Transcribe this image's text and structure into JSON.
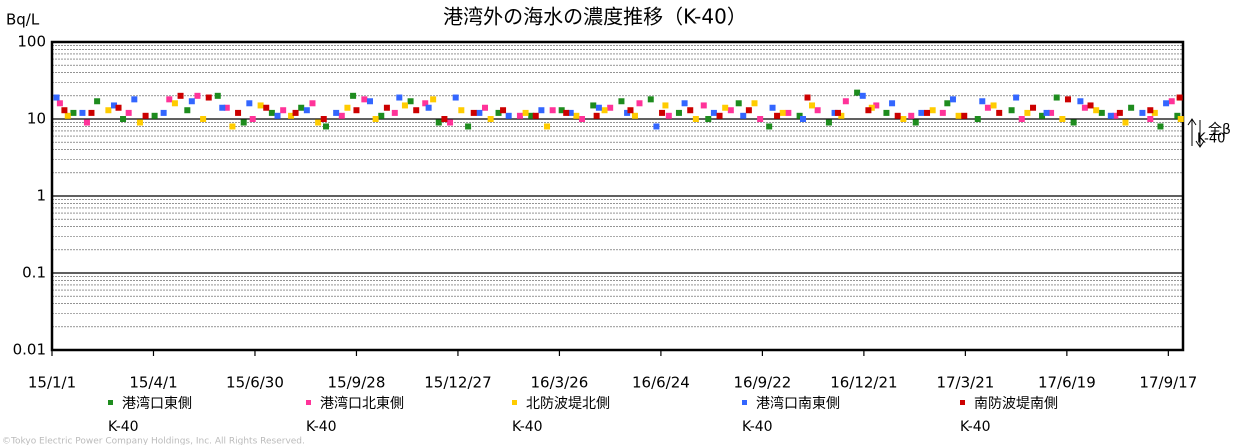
{
  "chart_data": {
    "type": "scatter",
    "title": "港湾外の海水の濃度推移（K-40）",
    "y_label": "Bq/L",
    "y_log": true,
    "grid": true,
    "minor_grid": true,
    "ylim": [
      0.01,
      100
    ],
    "yticks": [
      0.01,
      0.1,
      1,
      10,
      100
    ],
    "xlim": [
      "15/1/1",
      "17/9/30"
    ],
    "xticks": [
      "15/1/1",
      "15/4/1",
      "15/6/30",
      "15/9/28",
      "15/12/27",
      "16/3/26",
      "16/6/24",
      "16/9/22",
      "16/12/21",
      "17/3/21",
      "17/6/19",
      "17/9/17"
    ],
    "annotations": [
      "全β",
      "K-40"
    ],
    "footer": "©Tokyo Electric Power Company Holdings, Inc. All Rights Reserved.",
    "series": [
      {
        "name": "港湾口東側\nK-40",
        "color": "#1e8c1e",
        "x": [
          "15/1/20",
          "15/2/10",
          "15/3/5",
          "15/4/2",
          "15/5/1",
          "15/5/28",
          "15/6/20",
          "15/7/15",
          "15/8/10",
          "15/9/1",
          "15/9/25",
          "15/10/20",
          "15/11/15",
          "15/12/10",
          "16/1/5",
          "16/2/1",
          "16/3/1",
          "16/3/28",
          "16/4/25",
          "16/5/20",
          "16/6/15",
          "16/7/10",
          "16/8/5",
          "16/9/1",
          "16/9/28",
          "16/10/25",
          "16/11/20",
          "16/12/15",
          "17/1/10",
          "17/2/5",
          "17/3/5",
          "17/4/1",
          "17/5/1",
          "17/5/28",
          "17/6/10",
          "17/6/25",
          "17/7/20",
          "17/8/15",
          "17/9/10",
          "17/9/25"
        ],
        "values": [
          12,
          17,
          10,
          11,
          13,
          20,
          9,
          12,
          14,
          8,
          20,
          11,
          17,
          9,
          8,
          12,
          11,
          13,
          15,
          17,
          18,
          12,
          10,
          16,
          8,
          11,
          9,
          22,
          12,
          9,
          16,
          10,
          13,
          11,
          19,
          9,
          12,
          14,
          8,
          11
        ]
      },
      {
        "name": "港湾口北東側\nK-40",
        "color": "#ff3399",
        "x": [
          "15/1/8",
          "15/2/1",
          "15/3/10",
          "15/4/15",
          "15/5/10",
          "15/6/5",
          "15/6/28",
          "15/7/25",
          "15/8/20",
          "15/9/15",
          "15/10/5",
          "15/11/1",
          "15/11/28",
          "15/12/20",
          "16/1/20",
          "16/2/20",
          "16/3/20",
          "16/4/15",
          "16/5/10",
          "16/6/5",
          "16/7/1",
          "16/8/1",
          "16/8/25",
          "16/9/20",
          "16/10/15",
          "16/11/10",
          "16/12/5",
          "17/1/1",
          "17/2/1",
          "17/3/1",
          "17/4/10",
          "17/5/10",
          "17/6/5",
          "17/7/5",
          "17/8/1",
          "17/9/1",
          "17/9/20"
        ],
        "values": [
          16,
          9,
          12,
          18,
          20,
          14,
          10,
          13,
          16,
          11,
          18,
          12,
          16,
          9,
          14,
          11,
          13,
          10,
          14,
          16,
          11,
          15,
          13,
          10,
          12,
          13,
          17,
          15,
          11,
          12,
          14,
          10,
          12,
          14,
          11,
          10,
          17
        ]
      },
      {
        "name": "北防波堤北側\nK-40",
        "color": "#ffcc00",
        "x": [
          "15/1/15",
          "15/2/20",
          "15/3/20",
          "15/4/20",
          "15/5/15",
          "15/6/10",
          "15/7/5",
          "15/8/1",
          "15/8/25",
          "15/9/20",
          "15/10/15",
          "15/11/10",
          "15/12/5",
          "15/12/30",
          "16/1/25",
          "16/2/25",
          "16/3/15",
          "16/4/10",
          "16/5/5",
          "16/6/1",
          "16/6/28",
          "16/7/25",
          "16/8/20",
          "16/9/15",
          "16/10/10",
          "16/11/5",
          "16/12/1",
          "16/12/28",
          "17/1/25",
          "17/2/20",
          "17/3/15",
          "17/4/15",
          "17/5/15",
          "17/6/15",
          "17/7/15",
          "17/8/10",
          "17/9/5",
          "17/9/28"
        ],
        "values": [
          11,
          13,
          9,
          16,
          10,
          8,
          15,
          11,
          9,
          14,
          10,
          15,
          18,
          13,
          10,
          12,
          8,
          11,
          13,
          11,
          15,
          10,
          14,
          16,
          12,
          15,
          11,
          14,
          10,
          13,
          11,
          15,
          12,
          10,
          13,
          9,
          12,
          10
        ]
      },
      {
        "name": "港湾口南東側\nK-40",
        "color": "#3366ff",
        "x": [
          "15/1/5",
          "15/1/28",
          "15/2/25",
          "15/3/15",
          "15/4/10",
          "15/5/5",
          "15/6/1",
          "15/6/25",
          "15/7/20",
          "15/8/15",
          "15/9/10",
          "15/10/10",
          "15/11/5",
          "15/12/1",
          "15/12/25",
          "16/1/15",
          "16/2/10",
          "16/3/10",
          "16/4/5",
          "16/4/30",
          "16/5/25",
          "16/6/20",
          "16/7/15",
          "16/8/10",
          "16/9/5",
          "16/10/1",
          "16/10/28",
          "16/11/25",
          "16/12/20",
          "17/1/15",
          "17/2/10",
          "17/3/10",
          "17/4/5",
          "17/5/5",
          "17/6/1",
          "17/7/1",
          "17/7/28",
          "17/8/25",
          "17/9/15"
        ],
        "values": [
          19,
          12,
          15,
          18,
          12,
          17,
          14,
          16,
          11,
          13,
          12,
          17,
          19,
          14,
          19,
          12,
          11,
          13,
          12,
          14,
          12,
          8,
          16,
          12,
          11,
          14,
          10,
          12,
          20,
          16,
          12,
          18,
          17,
          19,
          12,
          17,
          11,
          12,
          16
        ]
      },
      {
        "name": "南防波堤南側\nK-40",
        "color": "#cc0000",
        "x": [
          "15/1/12",
          "15/2/5",
          "15/3/1",
          "15/3/25",
          "15/4/25",
          "15/5/20",
          "15/6/15",
          "15/7/10",
          "15/8/5",
          "15/8/30",
          "15/9/28",
          "15/10/25",
          "15/11/20",
          "15/12/15",
          "16/1/10",
          "16/2/5",
          "16/3/5",
          "16/4/1",
          "16/4/28",
          "16/5/28",
          "16/6/25",
          "16/7/20",
          "16/8/15",
          "16/9/10",
          "16/10/5",
          "16/11/1",
          "16/11/28",
          "16/12/25",
          "17/1/20",
          "17/2/15",
          "17/3/20",
          "17/4/20",
          "17/5/20",
          "17/6/20",
          "17/7/10",
          "17/8/5",
          "17/9/1",
          "17/9/27"
        ],
        "values": [
          13,
          12,
          14,
          11,
          20,
          19,
          12,
          14,
          12,
          10,
          13,
          14,
          13,
          10,
          12,
          13,
          11,
          12,
          11,
          13,
          12,
          13,
          11,
          13,
          11,
          19,
          12,
          13,
          11,
          12,
          11,
          12,
          14,
          18,
          15,
          12,
          13,
          19
        ]
      }
    ]
  }
}
